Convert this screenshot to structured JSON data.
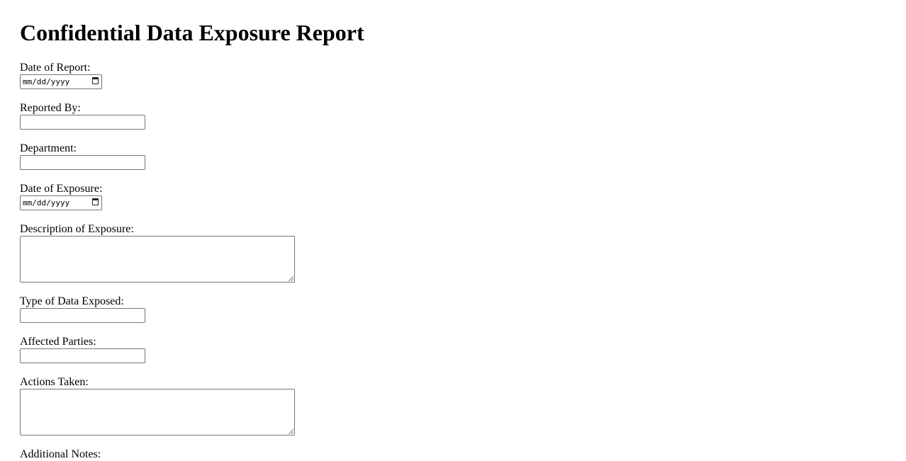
{
  "title": "Confidential Data Exposure Report",
  "fields": {
    "date_of_report": {
      "label": "Date of Report:",
      "placeholder": "mm/dd/yyyy"
    },
    "reported_by": {
      "label": "Reported By:",
      "value": ""
    },
    "department": {
      "label": "Department:",
      "value": ""
    },
    "date_of_exposure": {
      "label": "Date of Exposure:",
      "placeholder": "mm/dd/yyyy"
    },
    "description": {
      "label": "Description of Exposure:",
      "value": ""
    },
    "type_of_data": {
      "label": "Type of Data Exposed:",
      "value": ""
    },
    "affected_parties": {
      "label": "Affected Parties:",
      "value": ""
    },
    "actions_taken": {
      "label": "Actions Taken:",
      "value": ""
    },
    "additional_notes": {
      "label": "Additional Notes:"
    }
  }
}
